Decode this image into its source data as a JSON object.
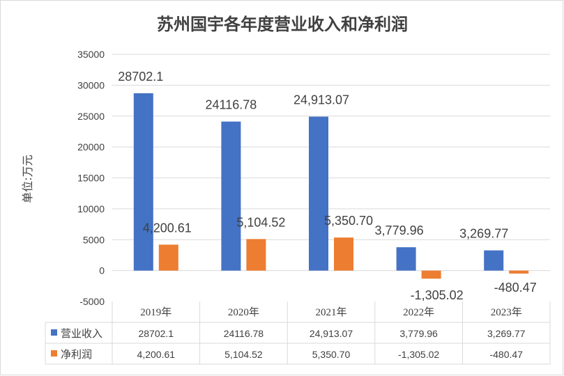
{
  "chart_data": {
    "type": "bar",
    "title": "苏州国宇各年度营业收入和净利润",
    "ylabel": "单位:万元",
    "xlabel": "",
    "categories": [
      "2019年",
      "2020年",
      "2021年",
      "2022年",
      "2023年"
    ],
    "ylim": [
      -5000,
      35000
    ],
    "yticks": [
      "35000",
      "30000",
      "25000",
      "20000",
      "15000",
      "10000",
      "5000",
      "0",
      "-5000"
    ],
    "grid": true,
    "legend": "data-table",
    "series": [
      {
        "name": "营业收入",
        "color": "#4472c4",
        "values": [
          28702.1,
          24116.78,
          24913.07,
          3779.96,
          3269.77
        ],
        "labels": [
          "28702.1",
          "24116.78",
          "24,913.07",
          "3,779.96",
          "3,269.77"
        ]
      },
      {
        "name": "净利润",
        "color": "#ed7d31",
        "values": [
          4200.61,
          5104.52,
          5350.7,
          -1305.02,
          -480.47
        ],
        "labels": [
          "4,200.61",
          "5,104.52",
          "5,350.70",
          "-1,305.02",
          "-480.47"
        ]
      }
    ]
  }
}
